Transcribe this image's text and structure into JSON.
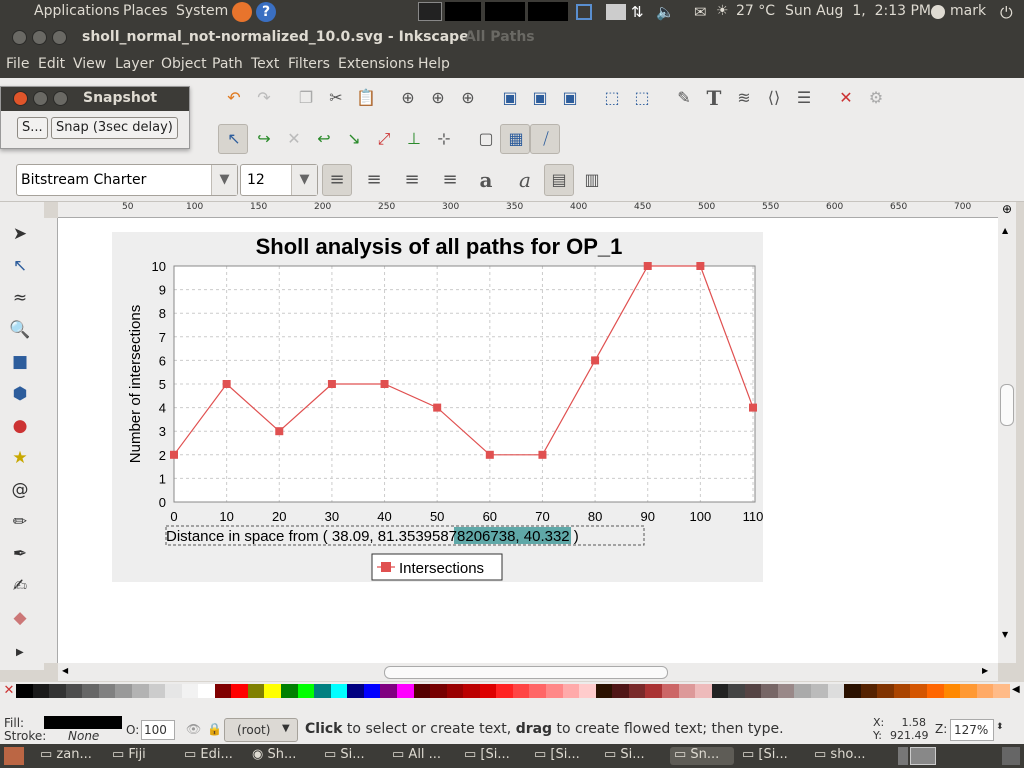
{
  "topbar": {
    "menus": [
      "Applications",
      "Places",
      "System"
    ],
    "weather": "27 °C",
    "datetime": "Sun Aug  1,  2:13 PM",
    "user": "mark"
  },
  "window": {
    "title": "sholl_normal_not-normalized_10.0.svg - Inkscape",
    "ghost_title": "All Paths"
  },
  "menubar": [
    "File",
    "Edit",
    "View",
    "Layer",
    "Object",
    "Path",
    "Text",
    "Filters",
    "Extensions",
    "Help"
  ],
  "text_toolbar": {
    "font_family": "Bitstream Charter",
    "font_size": "12"
  },
  "snapshot": {
    "title": "Snapshot",
    "button_short": "S...",
    "button_delay": "Snap (3sec delay)"
  },
  "ruler": {
    "ticks": [
      "50",
      "100",
      "150",
      "200",
      "250",
      "300",
      "350",
      "400",
      "450",
      "500",
      "550",
      "600",
      "650",
      "700"
    ]
  },
  "chart_data": {
    "type": "line",
    "title": "Sholl analysis of all paths for OP_1",
    "ylabel": "Number of intersections",
    "xlabel_prefix": "Distance in space from ( 38.09, 81.35",
    "xlabel_selected": "395878206738",
    "xlabel_suffix": ", 40.332 )",
    "x": [
      0,
      10,
      20,
      30,
      40,
      50,
      60,
      70,
      80,
      90,
      100,
      110
    ],
    "series": [
      {
        "name": "Intersections",
        "values": [
          2,
          5,
          3,
          5,
          5,
          4,
          2,
          2,
          6,
          10,
          10,
          4
        ],
        "color": "#e05050"
      }
    ],
    "xlim": [
      0,
      110
    ],
    "ylim": [
      0,
      10
    ],
    "xticks": [
      "0",
      "10",
      "20",
      "30",
      "40",
      "50",
      "60",
      "70",
      "80",
      "90",
      "100",
      "110"
    ],
    "yticks": [
      "0",
      "1",
      "2",
      "3",
      "4",
      "5",
      "6",
      "7",
      "8",
      "9",
      "10"
    ],
    "grid": true,
    "legend": "bottom-center"
  },
  "status": {
    "fill_label": "Fill:",
    "stroke_label": "Stroke:",
    "stroke_value": "None",
    "opacity_label": "O:",
    "opacity_value": "100",
    "layer": "(root)",
    "hint_b1": "Click",
    "hint_t1": " to select or create text, ",
    "hint_b2": "drag",
    "hint_t2": " to create flowed text; then type.",
    "x_label": "X:",
    "x_value": "1.58",
    "y_label": "Y:",
    "y_value": "921.49",
    "zoom_label": "Z:",
    "zoom_value": "127%"
  },
  "taskbar": [
    "zan...",
    "Fiji",
    "Edi...",
    "Sh...",
    "Si...",
    "All ...",
    "[Si...",
    "[Si...",
    "Si...",
    "Sn...",
    "[Si...",
    "sho..."
  ],
  "colors": {
    "panel": "#3c3b37",
    "accent": "#f07746",
    "selection": "#5fa8a8"
  }
}
